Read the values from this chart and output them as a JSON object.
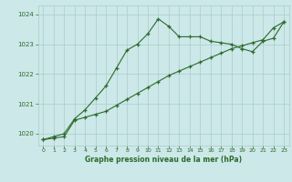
{
  "line1_x": [
    0,
    1,
    2,
    3,
    4,
    5,
    6,
    7,
    8,
    9,
    10,
    11,
    12,
    13,
    14,
    15,
    16,
    17,
    18,
    19,
    20,
    21,
    22,
    23
  ],
  "line1_y": [
    1019.8,
    1019.9,
    1020.0,
    1020.5,
    1020.8,
    1021.2,
    1021.6,
    1022.2,
    1022.8,
    1023.0,
    1023.35,
    1023.85,
    1023.6,
    1023.25,
    1023.25,
    1023.25,
    1023.1,
    1023.05,
    1023.0,
    1022.85,
    1022.75,
    1023.1,
    1023.2,
    1023.75
  ],
  "line2_x": [
    0,
    1,
    2,
    3,
    4,
    5,
    6,
    7,
    8,
    9,
    10,
    11,
    12,
    13,
    14,
    15,
    16,
    17,
    18,
    19,
    20,
    21,
    22,
    23
  ],
  "line2_y": [
    1019.8,
    1019.85,
    1019.9,
    1020.45,
    1020.55,
    1020.65,
    1020.75,
    1020.95,
    1021.15,
    1021.35,
    1021.55,
    1021.75,
    1021.95,
    1022.1,
    1022.25,
    1022.4,
    1022.55,
    1022.7,
    1022.85,
    1022.95,
    1023.05,
    1023.15,
    1023.55,
    1023.75
  ],
  "line_color": "#2d6a2d",
  "bg_color": "#cce8e8",
  "grid_color": "#aacccc",
  "xlabel": "Graphe pression niveau de la mer (hPa)",
  "xlim": [
    -0.5,
    23.5
  ],
  "ylim": [
    1019.6,
    1024.3
  ],
  "yticks": [
    1020,
    1021,
    1022,
    1023,
    1024
  ],
  "xticks": [
    0,
    1,
    2,
    3,
    4,
    5,
    6,
    7,
    8,
    9,
    10,
    11,
    12,
    13,
    14,
    15,
    16,
    17,
    18,
    19,
    20,
    21,
    22,
    23
  ]
}
